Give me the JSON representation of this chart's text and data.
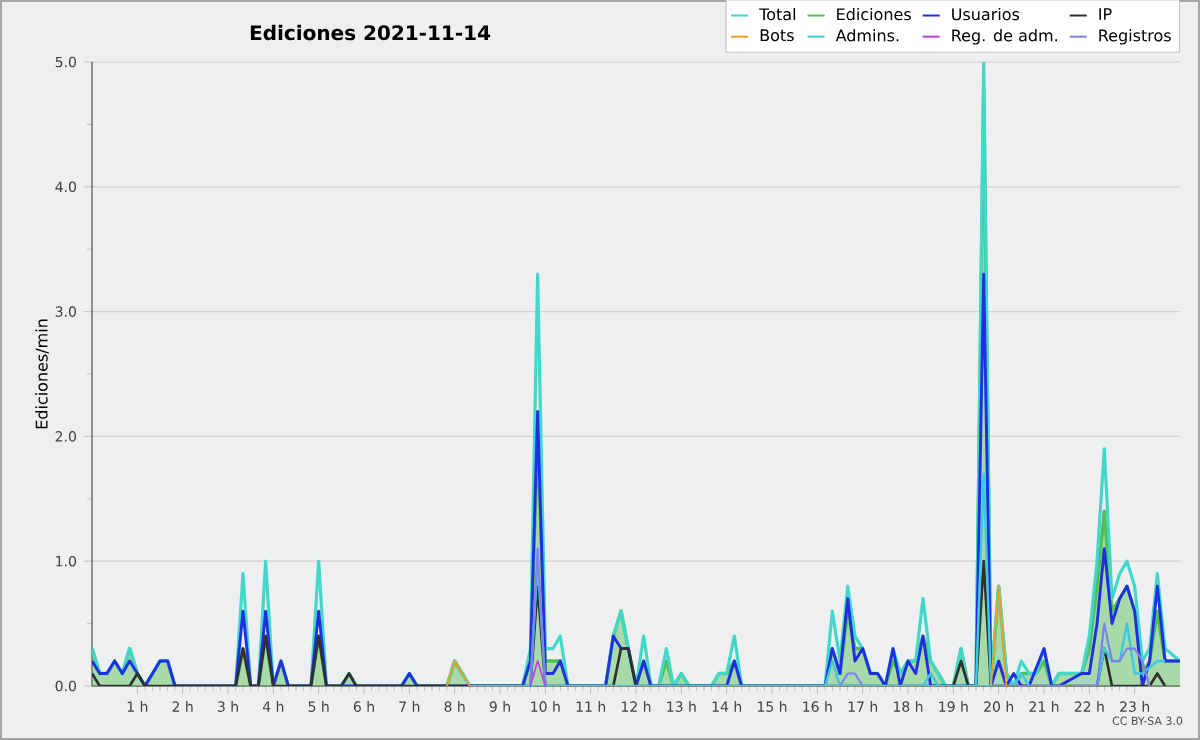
{
  "chart_data": {
    "type": "line",
    "title": "Ediciones 2021-11-14",
    "ylabel": "Ediciones/min",
    "annotations": [
      "CC BY-SA 3.0"
    ],
    "xlim": [
      0,
      24
    ],
    "ylim": [
      0,
      5
    ],
    "xticks": [
      {
        "value": 1,
        "label": "1 h"
      },
      {
        "value": 2,
        "label": "2 h"
      },
      {
        "value": 3,
        "label": "3 h"
      },
      {
        "value": 4,
        "label": "4 h"
      },
      {
        "value": 5,
        "label": "5 h"
      },
      {
        "value": 6,
        "label": "6 h"
      },
      {
        "value": 7,
        "label": "7 h"
      },
      {
        "value": 8,
        "label": "8 h"
      },
      {
        "value": 9,
        "label": "9 h"
      },
      {
        "value": 10,
        "label": "10 h"
      },
      {
        "value": 11,
        "label": "11 h"
      },
      {
        "value": 12,
        "label": "12 h"
      },
      {
        "value": 13,
        "label": "13 h"
      },
      {
        "value": 14,
        "label": "14 h"
      },
      {
        "value": 15,
        "label": "15 h"
      },
      {
        "value": 16,
        "label": "16 h"
      },
      {
        "value": 17,
        "label": "17 h"
      },
      {
        "value": 18,
        "label": "18 h"
      },
      {
        "value": 19,
        "label": "19 h"
      },
      {
        "value": 20,
        "label": "20 h"
      },
      {
        "value": 21,
        "label": "21 h"
      },
      {
        "value": 22,
        "label": "22 h"
      },
      {
        "value": 23,
        "label": "23 h"
      }
    ],
    "yticks": [
      {
        "value": 0,
        "label": "0.0"
      },
      {
        "value": 1,
        "label": "1.0"
      },
      {
        "value": 2,
        "label": "2.0"
      },
      {
        "value": 3,
        "label": "3.0"
      },
      {
        "value": 4,
        "label": "4.0"
      },
      {
        "value": 5,
        "label": "5.0"
      }
    ],
    "grid": "y",
    "legend": "top right",
    "marker": "none",
    "line_style": "solid",
    "series": [
      {
        "name": "Total",
        "type": "line",
        "color": "#40d8c8",
        "x": [
          0,
          0.17,
          0.33,
          0.5,
          0.67,
          0.83,
          1.0,
          1.17,
          1.5,
          1.67,
          1.83,
          3.17,
          3.33,
          3.5,
          3.67,
          3.83,
          4.0,
          4.17,
          4.33,
          4.83,
          5.0,
          5.17,
          5.5,
          5.67,
          5.83,
          6.83,
          7.0,
          7.17,
          7.83,
          8.0,
          8.17,
          8.33,
          9.5,
          9.67,
          9.83,
          10.0,
          10.17,
          10.33,
          10.5,
          11.33,
          11.5,
          11.67,
          11.83,
          12.0,
          12.17,
          12.33,
          12.5,
          12.67,
          12.83,
          13.0,
          13.17,
          13.67,
          13.83,
          14.0,
          14.17,
          14.33,
          16.17,
          16.33,
          16.5,
          16.67,
          16.83,
          17.0,
          17.17,
          17.33,
          17.5,
          17.67,
          17.83,
          18.0,
          18.17,
          18.33,
          18.5,
          18.67,
          18.83,
          19.0,
          19.17,
          19.33,
          19.5,
          19.67,
          19.83,
          20.0,
          20.17,
          20.33,
          20.5,
          20.67,
          20.83,
          21.0,
          21.17,
          21.33,
          21.5,
          21.67,
          21.83,
          22.0,
          22.17,
          22.33,
          22.5,
          22.67,
          22.83,
          23.0,
          23.17,
          23.33,
          23.5,
          23.67,
          24.0
        ],
        "values": [
          0.3,
          0.1,
          0.1,
          0.2,
          0.1,
          0.3,
          0.1,
          0,
          0.2,
          0.2,
          0,
          0,
          0.9,
          0,
          0,
          1.0,
          0,
          0.2,
          0,
          0,
          1.0,
          0,
          0,
          0.1,
          0,
          0,
          0.1,
          0,
          0,
          0.2,
          0.1,
          0,
          0,
          0.3,
          3.3,
          0.3,
          0.3,
          0.4,
          0,
          0,
          0.4,
          0.6,
          0.3,
          0,
          0.4,
          0,
          0,
          0.3,
          0,
          0.1,
          0,
          0,
          0.1,
          0.1,
          0.4,
          0,
          0,
          0.6,
          0.2,
          0.8,
          0.4,
          0.3,
          0.1,
          0.1,
          0,
          0.3,
          0.1,
          0.2,
          0.2,
          0.7,
          0.2,
          0.1,
          0,
          0,
          0.3,
          0,
          0,
          5.0,
          0,
          0.8,
          0.1,
          0,
          0.2,
          0.1,
          0.1,
          0.3,
          0,
          0.1,
          0.1,
          0.1,
          0.1,
          0.4,
          1.0,
          1.9,
          0.7,
          0.9,
          1.0,
          0.8,
          0.2,
          0.3,
          0.9,
          0.3,
          0.2
        ]
      },
      {
        "name": "Ediciones",
        "type": "area",
        "color": "#50c050",
        "x": [
          0,
          0.17,
          0.33,
          0.5,
          0.67,
          0.83,
          1.0,
          1.17,
          1.5,
          1.67,
          1.83,
          3.17,
          3.33,
          3.5,
          3.67,
          3.83,
          4.0,
          4.17,
          4.33,
          4.83,
          5.0,
          5.17,
          5.5,
          5.67,
          5.83,
          6.83,
          7.0,
          7.17,
          7.83,
          8.0,
          8.17,
          8.33,
          9.5,
          9.67,
          9.83,
          10.0,
          10.17,
          10.33,
          10.5,
          11.33,
          11.5,
          11.67,
          11.83,
          12.0,
          12.17,
          12.33,
          12.5,
          12.67,
          12.83,
          13.0,
          13.17,
          13.67,
          13.83,
          14.0,
          14.17,
          14.33,
          16.17,
          16.33,
          16.5,
          16.67,
          16.83,
          17.0,
          17.17,
          17.33,
          17.5,
          17.67,
          17.83,
          18.0,
          18.17,
          18.33,
          18.5,
          18.67,
          18.83,
          19.0,
          19.17,
          19.33,
          19.5,
          19.67,
          19.83,
          20.0,
          20.17,
          20.33,
          20.5,
          20.67,
          20.83,
          21.0,
          21.17,
          21.33,
          21.5,
          21.67,
          21.83,
          22.0,
          22.17,
          22.33,
          22.5,
          22.67,
          22.83,
          23.0,
          23.17,
          23.33,
          23.5,
          23.67,
          24.0
        ],
        "values": [
          0.3,
          0.1,
          0.1,
          0.2,
          0.1,
          0.3,
          0.1,
          0,
          0.2,
          0.2,
          0,
          0,
          0.3,
          0,
          0,
          0.4,
          0,
          0.2,
          0,
          0,
          0.4,
          0,
          0,
          0.1,
          0,
          0,
          0.1,
          0,
          0,
          0.2,
          0.1,
          0,
          0,
          0.2,
          2.0,
          0.2,
          0.2,
          0.2,
          0,
          0,
          0.4,
          0.6,
          0.3,
          0,
          0.2,
          0,
          0,
          0.2,
          0,
          0.1,
          0,
          0,
          0.1,
          0.1,
          0.2,
          0,
          0,
          0.3,
          0.1,
          0.6,
          0.3,
          0.3,
          0.1,
          0.1,
          0,
          0.2,
          0.1,
          0.2,
          0.2,
          0.4,
          0.2,
          0.1,
          0,
          0,
          0.3,
          0,
          0,
          4.8,
          0,
          0.8,
          0.1,
          0,
          0.1,
          0.1,
          0.1,
          0.2,
          0,
          0.1,
          0.1,
          0.1,
          0.1,
          0.3,
          0.8,
          1.4,
          0.6,
          0.7,
          0.8,
          0.6,
          0.1,
          0.2,
          0.6,
          0.2,
          0.2
        ]
      },
      {
        "name": "Usuarios",
        "type": "line",
        "color": "#2030e0",
        "x": [
          0,
          0.17,
          0.33,
          0.5,
          0.67,
          0.83,
          1.0,
          1.17,
          1.5,
          1.67,
          1.83,
          3.17,
          3.33,
          3.5,
          3.67,
          3.83,
          4.0,
          4.17,
          4.33,
          4.83,
          5.0,
          5.17,
          6.83,
          7.0,
          7.17,
          9.5,
          9.67,
          9.83,
          10.0,
          10.17,
          10.33,
          10.5,
          11.33,
          11.5,
          11.67,
          11.83,
          12.0,
          12.17,
          12.33,
          14.0,
          14.17,
          14.33,
          16.17,
          16.33,
          16.5,
          16.67,
          16.83,
          17.0,
          17.17,
          17.33,
          17.5,
          17.67,
          17.83,
          18.0,
          18.17,
          18.33,
          18.5,
          19.5,
          19.67,
          19.83,
          20.0,
          20.17,
          20.33,
          20.5,
          20.67,
          21.0,
          21.17,
          21.33,
          21.83,
          22.0,
          22.17,
          22.33,
          22.5,
          22.67,
          22.83,
          23.0,
          23.17,
          23.33,
          23.5,
          23.67,
          24.0
        ],
        "values": [
          0.2,
          0.1,
          0.1,
          0.2,
          0.1,
          0.2,
          0.1,
          0,
          0.2,
          0.2,
          0,
          0,
          0.6,
          0,
          0,
          0.6,
          0,
          0.2,
          0,
          0,
          0.6,
          0,
          0,
          0.1,
          0,
          0,
          0.2,
          2.2,
          0.1,
          0.1,
          0.2,
          0,
          0,
          0.4,
          0.3,
          0.3,
          0,
          0.2,
          0,
          0,
          0.2,
          0,
          0,
          0.3,
          0.1,
          0.7,
          0.2,
          0.3,
          0.1,
          0.1,
          0,
          0.3,
          0,
          0.2,
          0.1,
          0.4,
          0,
          0,
          3.3,
          0,
          0.2,
          0,
          0.1,
          0,
          0,
          0.3,
          0,
          0,
          0.1,
          0.1,
          0.5,
          1.1,
          0.5,
          0.7,
          0.8,
          0.6,
          0,
          0.2,
          0.8,
          0.2,
          0.2
        ]
      },
      {
        "name": "IP",
        "type": "line",
        "color": "#303030",
        "x": [
          0,
          0.17,
          0.83,
          1.0,
          1.17,
          3.17,
          3.33,
          3.5,
          3.67,
          3.83,
          4.0,
          4.83,
          5.0,
          5.17,
          5.5,
          5.67,
          5.83,
          9.67,
          9.83,
          10.0,
          11.5,
          11.67,
          11.83,
          12.0,
          18.83,
          19.0,
          19.17,
          19.33,
          19.5,
          19.67,
          19.83,
          22.17,
          22.33,
          22.5,
          23.33,
          23.5,
          23.67
        ],
        "values": [
          0.1,
          0,
          0,
          0.1,
          0,
          0,
          0.3,
          0,
          0,
          0.4,
          0,
          0,
          0.4,
          0,
          0,
          0.1,
          0,
          0,
          0.8,
          0,
          0,
          0.3,
          0.3,
          0,
          0,
          0,
          0.2,
          0,
          0,
          1.0,
          0,
          0,
          0.3,
          0,
          0,
          0.1,
          0
        ]
      },
      {
        "name": "Bots",
        "type": "line",
        "color": "#f0a020",
        "x": [
          7.83,
          8.0,
          8.33,
          19.83,
          20.0,
          20.17
        ],
        "values": [
          0,
          0.2,
          0,
          0,
          0.8,
          0
        ]
      },
      {
        "name": "Admins.",
        "type": "line",
        "color": "#40c8e0",
        "x": [
          9.67,
          9.83,
          10.0,
          16.17,
          16.33,
          16.5,
          18.33,
          18.5,
          18.67,
          19.5,
          19.67,
          19.83,
          20.33,
          20.5,
          20.67,
          22.17,
          22.33,
          22.5,
          22.67,
          22.83,
          23.0,
          23.17,
          23.5,
          23.67
        ],
        "values": [
          0,
          1.0,
          0,
          0,
          0.2,
          0,
          0,
          0.1,
          0,
          0,
          1.7,
          0,
          0,
          0.1,
          0,
          0,
          0.3,
          0.2,
          0.2,
          0.5,
          0.1,
          0.1,
          0.2,
          0.2
        ]
      },
      {
        "name": "Reg. de adm.",
        "type": "line",
        "color": "#c040e0",
        "x": [
          9.67,
          9.83,
          10.0
        ],
        "values": [
          0,
          0.2,
          0
        ]
      },
      {
        "name": "Registros",
        "type": "line",
        "color": "#8080f0",
        "x": [
          9.67,
          9.83,
          10.0,
          16.5,
          16.67,
          16.83,
          17.0,
          22.17,
          22.33,
          22.5,
          22.67,
          22.83,
          23.0,
          23.17,
          23.33
        ],
        "values": [
          0,
          1.1,
          0,
          0,
          0.1,
          0.1,
          0,
          0,
          0.5,
          0.2,
          0.2,
          0.3,
          0.3,
          0.2,
          0
        ]
      }
    ]
  }
}
